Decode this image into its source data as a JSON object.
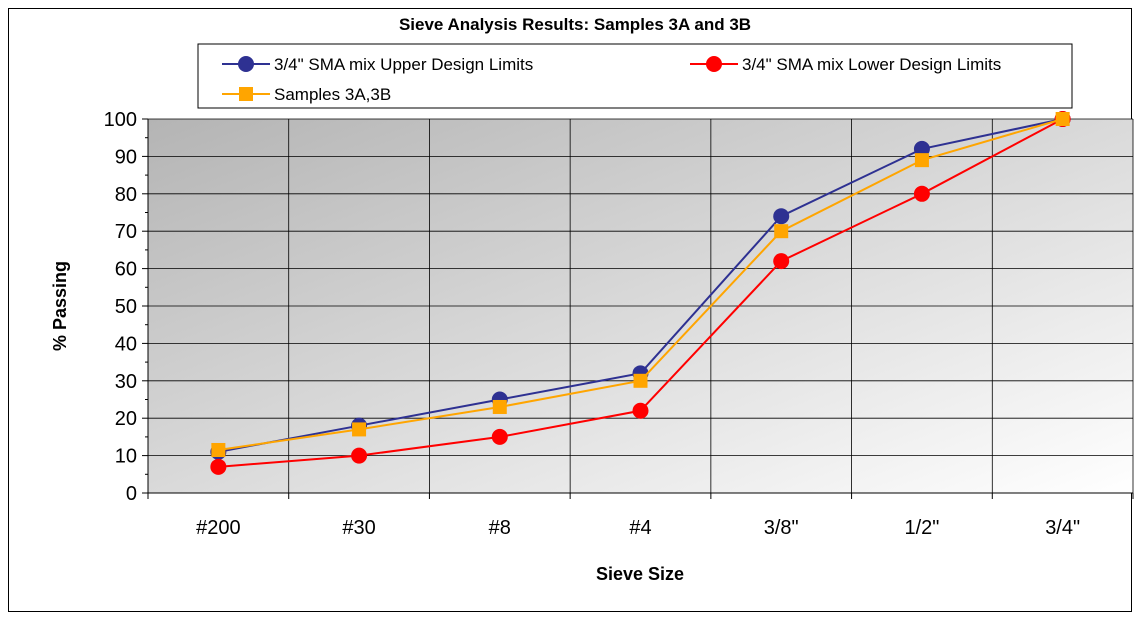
{
  "chart_data": {
    "type": "line",
    "title": "Sieve Analysis Results: Samples 3A and 3B",
    "xlabel": "Sieve Size",
    "ylabel": "% Passing",
    "categories": [
      "#200",
      "#30",
      "#8",
      "#4",
      "3/8\"",
      "1/2\"",
      "3/4\""
    ],
    "ylim": [
      0,
      100
    ],
    "yticks": [
      0,
      10,
      20,
      30,
      40,
      50,
      60,
      70,
      80,
      90,
      100
    ],
    "grid": true,
    "legend_position": "top",
    "series": [
      {
        "name": "3/4\" SMA mix Upper Design Limits",
        "values": [
          11,
          18,
          25,
          32,
          74,
          92,
          100
        ],
        "color": "#2e3192",
        "marker": "circle"
      },
      {
        "name": "3/4\" SMA mix Lower Design Limits",
        "values": [
          7,
          10,
          15,
          22,
          62,
          80,
          100
        ],
        "color": "#ff0000",
        "marker": "circle"
      },
      {
        "name": "Samples 3A,3B",
        "values": [
          11.5,
          17,
          23,
          30,
          70,
          89,
          100
        ],
        "color": "#ffa500",
        "marker": "square"
      }
    ]
  }
}
